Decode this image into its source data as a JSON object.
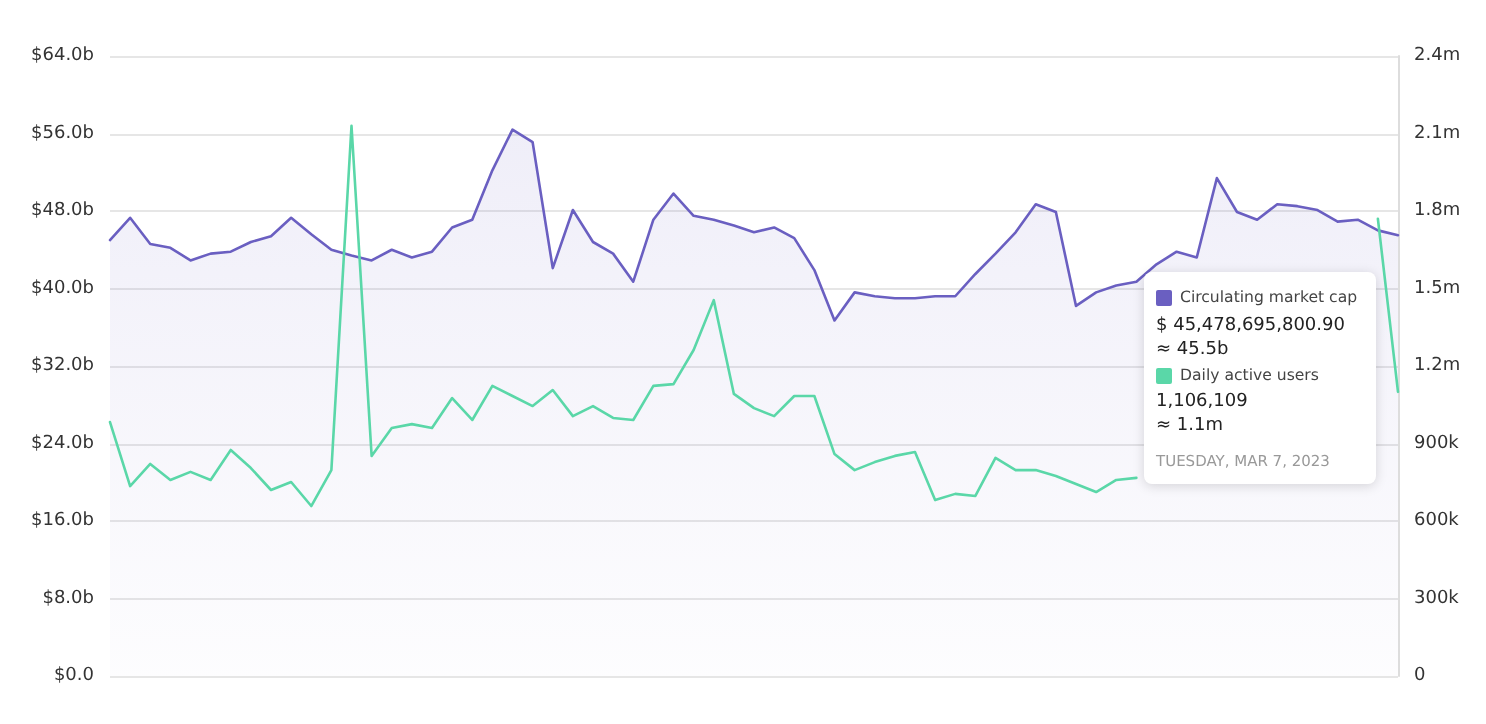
{
  "chart_data": {
    "type": "line",
    "categories": [
      null,
      null,
      null,
      null,
      null,
      null,
      null,
      null,
      null,
      null,
      null,
      null,
      null,
      null,
      null,
      null,
      null,
      null,
      null,
      null,
      null,
      null,
      null,
      null,
      null,
      null,
      null,
      null,
      null,
      null,
      null,
      null,
      null,
      null,
      null,
      null,
      null,
      null,
      null,
      null,
      null,
      null,
      null,
      null,
      null,
      null,
      null,
      null,
      null,
      null,
      null,
      null,
      null,
      null,
      null,
      null,
      null,
      null,
      null,
      null,
      null,
      null,
      null,
      null,
      null
    ],
    "series": [
      {
        "name": "Circulating market cap",
        "type": "area",
        "color": "#6a5fc1",
        "values": [
          45.0,
          47.3,
          44.6,
          44.2,
          42.9,
          43.6,
          43.8,
          44.8,
          45.4,
          47.3,
          45.6,
          44.0,
          43.4,
          42.9,
          44.0,
          43.2,
          43.8,
          46.3,
          47.1,
          52.2,
          56.4,
          55.1,
          42.1,
          48.1,
          44.8,
          43.6,
          40.7,
          47.1,
          49.8,
          47.5,
          47.1,
          46.5,
          45.8,
          46.3,
          45.2,
          41.9,
          36.7,
          39.6,
          39.2,
          39.0,
          39.0,
          39.2,
          39.2,
          41.5,
          43.6,
          45.8,
          48.7,
          47.9,
          38.2,
          39.6,
          40.3,
          40.7,
          42.5,
          43.8,
          43.2,
          51.4,
          47.9,
          47.1,
          48.7,
          48.5,
          48.1,
          46.9,
          47.1,
          46.0,
          45.5
        ]
      },
      {
        "name": "Daily active users",
        "type": "line",
        "axis": "y2",
        "color": "#5ad7a8",
        "values": [
          983000,
          735000,
          821000,
          759000,
          790000,
          759000,
          875000,
          805000,
          720000,
          751000,
          658000,
          797000,
          2130000,
          852000,
          960000,
          975000,
          960000,
          1076000,
          991000,
          1123000,
          1084000,
          1045000,
          1107000,
          1006000,
          1045000,
          999000,
          991000,
          1123000,
          1130000,
          1262000,
          1455000,
          1092000,
          1037000,
          1006000,
          1084000,
          1084000,
          859000,
          797000,
          828000,
          852000,
          867000,
          681000,
          705000,
          697000,
          844000,
          797000,
          797000,
          774000,
          743000,
          712000,
          759000,
          767000,
          null,
          null,
          null,
          null,
          null,
          null,
          null,
          null,
          null,
          null,
          null,
          1770000,
          1100000
        ]
      }
    ],
    "ylim": [
      0,
      64
    ],
    "yticks": [
      {
        "value": 0,
        "label": "$0.0"
      },
      {
        "value": 8,
        "label": "$8.0b"
      },
      {
        "value": 16,
        "label": "$16.0b"
      },
      {
        "value": 24,
        "label": "$24.0b"
      },
      {
        "value": 32,
        "label": "$32.0b"
      },
      {
        "value": 40,
        "label": "$40.0b"
      },
      {
        "value": 48,
        "label": "$48.0b"
      },
      {
        "value": 56,
        "label": "$56.0b"
      },
      {
        "value": 64,
        "label": "$64.0b"
      }
    ],
    "y2lim": [
      0,
      2400000
    ],
    "y2ticks": [
      {
        "value": 0,
        "label": "0"
      },
      {
        "value": 300000,
        "label": "300k"
      },
      {
        "value": 600000,
        "label": "600k"
      },
      {
        "value": 900000,
        "label": "900k"
      },
      {
        "value": 1200000,
        "label": "1.2m"
      },
      {
        "value": 1500000,
        "label": "1.5m"
      },
      {
        "value": 1800000,
        "label": "1.8m"
      },
      {
        "value": 2100000,
        "label": "2.1m"
      },
      {
        "value": 2400000,
        "label": "2.4m"
      }
    ],
    "annotations": [
      "$ 45,478,695,800.90",
      "≈ 45.5b",
      "1,106,109",
      "≈ 1.1m",
      "TUESDAY, MAR 7, 2023"
    ],
    "grid": "y",
    "legend": "right",
    "marker": "none",
    "line_style": "solid"
  }
}
